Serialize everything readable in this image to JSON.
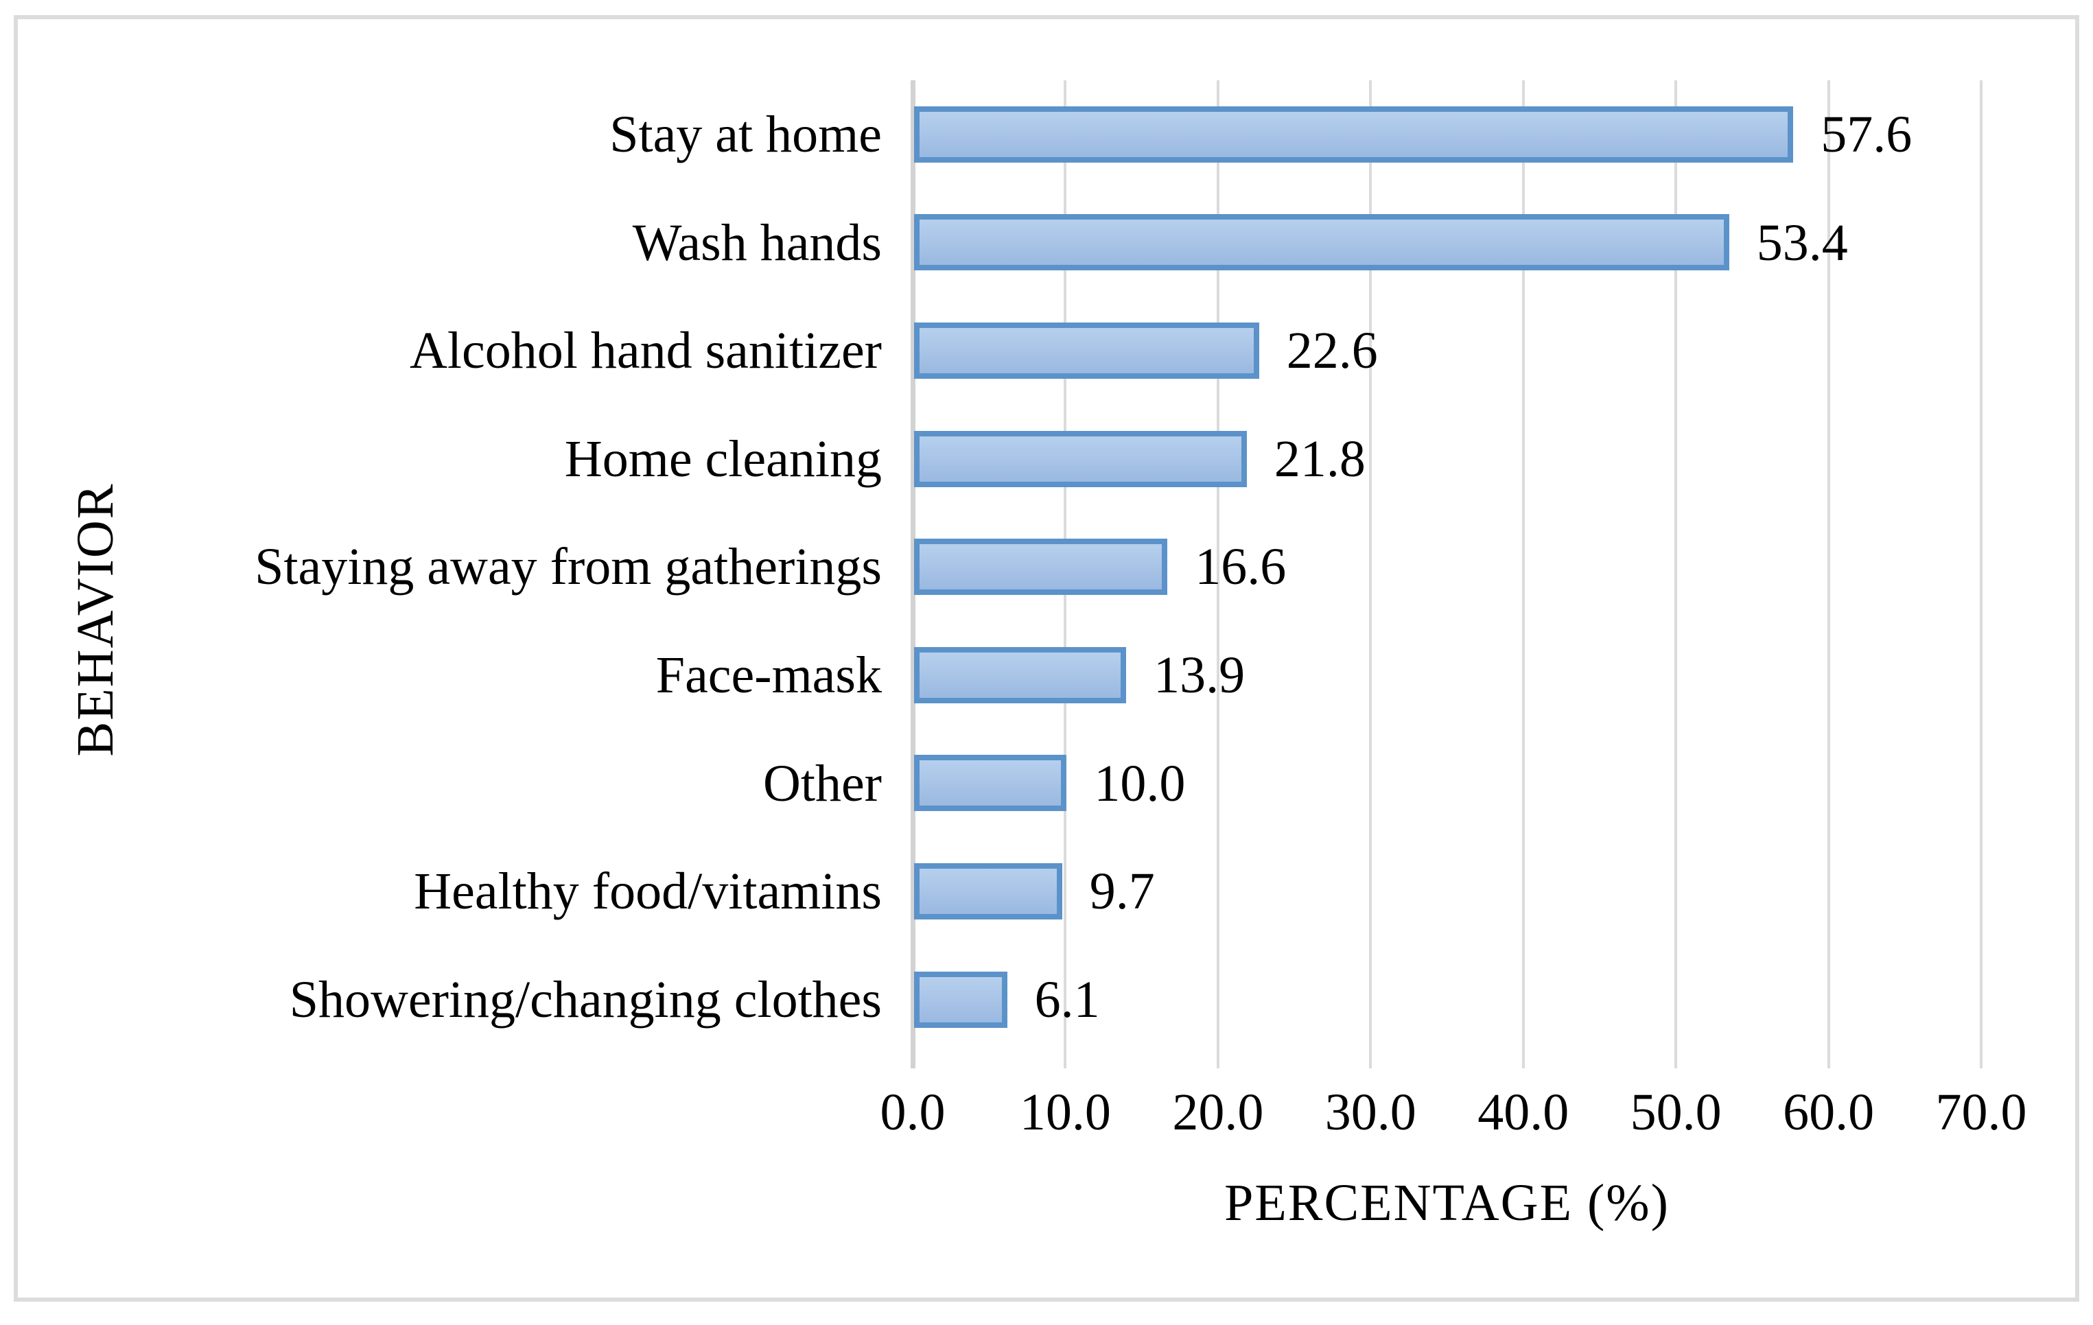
{
  "chart_data": {
    "type": "bar",
    "orientation": "horizontal",
    "categories": [
      "Stay at home",
      "Wash hands",
      "Alcohol hand sanitizer",
      "Home cleaning",
      "Staying away from gatherings",
      "Face-mask",
      "Other",
      "Healthy food/vitamins",
      "Showering/changing clothes"
    ],
    "values": [
      57.6,
      53.4,
      22.6,
      21.8,
      16.6,
      13.9,
      10.0,
      9.7,
      6.1
    ],
    "value_labels": [
      "57.6",
      "53.4",
      "22.6",
      "21.8",
      "16.6",
      "13.9",
      "10.0",
      "9.7",
      "6.1"
    ],
    "xlabel": "PERCENTAGE (%)",
    "ylabel": "BEHAVIOR",
    "xlim": [
      0,
      70
    ],
    "x_ticks": [
      0,
      10,
      20,
      30,
      40,
      50,
      60,
      70
    ],
    "x_tick_labels": [
      "0.0",
      "10.0",
      "20.0",
      "30.0",
      "40.0",
      "50.0",
      "60.0",
      "70.0"
    ],
    "grid": "vertical-major",
    "legend": "none",
    "colors": {
      "bar_fill_top": "#b6cfed",
      "bar_fill_bottom": "#9ab9e1",
      "bar_border": "#5b92c9",
      "gridline": "#dbdbdb",
      "axis_line": "#d2d2d2",
      "frame_border": "#dcdcdc",
      "text": "#000000"
    }
  }
}
